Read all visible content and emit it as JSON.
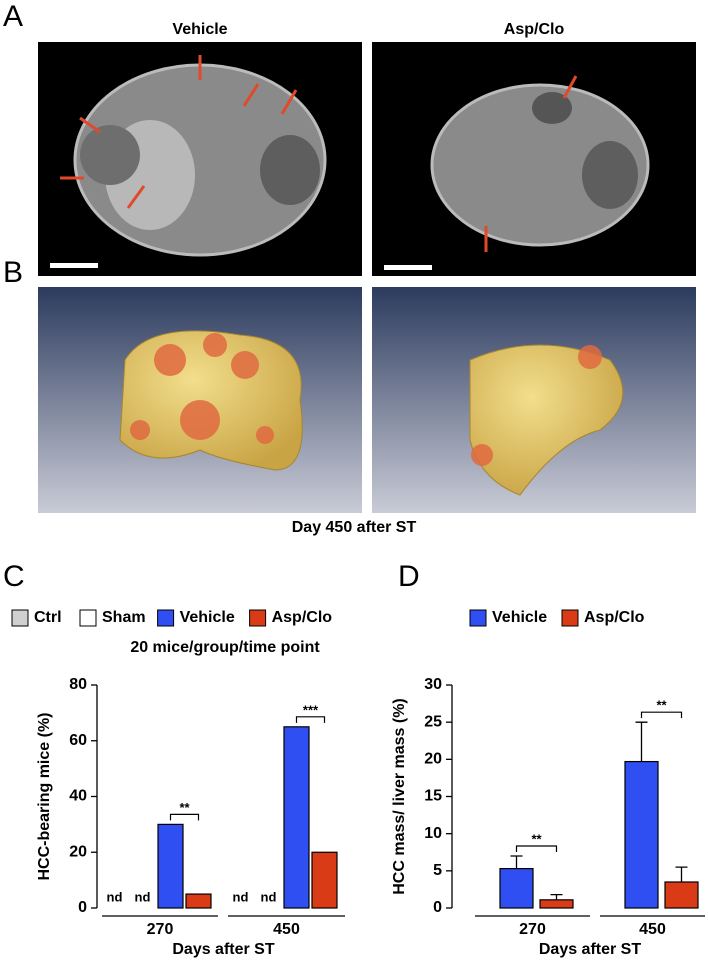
{
  "panels": {
    "labels": [
      "A",
      "B",
      "C",
      "D"
    ],
    "image_titles": [
      "Vehicle",
      "Asp/Clo"
    ],
    "caption": "Day 450 after ST"
  },
  "chart_data": [
    {
      "type": "bar",
      "subtitle": "20 mice/group/time point",
      "y_label": "HCC-bearing mice (%)",
      "x_label": "Days after ST",
      "categories": [
        "270",
        "450"
      ],
      "series": [
        {
          "name": "Ctrl",
          "color": "#d0d0d0",
          "values": [
            null,
            null
          ],
          "value_labels": [
            "nd",
            "nd"
          ]
        },
        {
          "name": "Sham",
          "color": "#ffffff",
          "values": [
            null,
            null
          ],
          "value_labels": [
            "nd",
            "nd"
          ]
        },
        {
          "name": "Vehicle",
          "color": "#2f4ff2",
          "values": [
            30,
            65
          ]
        },
        {
          "name": "Asp/Clo",
          "color": "#da3b17",
          "values": [
            5,
            20
          ]
        }
      ],
      "significance": [
        "**",
        "***"
      ],
      "ylim": [
        0,
        80
      ],
      "yticks": [
        0,
        20,
        40,
        60,
        80
      ]
    },
    {
      "type": "bar",
      "y_label": "HCC mass/ liver mass (%)",
      "x_label": "Days after ST",
      "categories": [
        "270",
        "450"
      ],
      "series": [
        {
          "name": "Vehicle",
          "color": "#2f4ff2",
          "values": [
            5.3,
            19.7
          ],
          "errors": [
            1.7,
            5.3
          ]
        },
        {
          "name": "Asp/Clo",
          "color": "#da3b17",
          "values": [
            1.1,
            3.5
          ],
          "errors": [
            0.7,
            2.0
          ]
        }
      ],
      "significance": [
        "**",
        "**"
      ],
      "ylim": [
        0,
        30
      ],
      "yticks": [
        0,
        5,
        10,
        15,
        20,
        25,
        30
      ]
    }
  ]
}
